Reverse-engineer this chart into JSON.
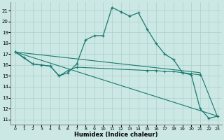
{
  "xlabel": "Humidex (Indice chaleur)",
  "bg_color": "#cce8e5",
  "grid_color": "#aacfcb",
  "line_color": "#1a7a6e",
  "xlim": [
    -0.5,
    23.5
  ],
  "ylim": [
    10.5,
    21.8
  ],
  "xticks": [
    0,
    1,
    2,
    3,
    4,
    5,
    6,
    7,
    8,
    9,
    10,
    11,
    12,
    13,
    14,
    15,
    16,
    17,
    18,
    19,
    20,
    21,
    22,
    23
  ],
  "yticks": [
    11,
    12,
    13,
    14,
    15,
    16,
    17,
    18,
    19,
    20,
    21
  ],
  "curve1_x": [
    0,
    1,
    2,
    3,
    4,
    5,
    6,
    7,
    8,
    9,
    10,
    11,
    12,
    13,
    14,
    15,
    16,
    17,
    18,
    19,
    20,
    21,
    22,
    23
  ],
  "curve1_y": [
    17.2,
    16.7,
    16.1,
    16.0,
    15.9,
    15.0,
    15.3,
    16.1,
    18.3,
    18.7,
    18.7,
    21.3,
    20.9,
    20.5,
    20.8,
    19.3,
    18.0,
    17.0,
    16.5,
    15.3,
    15.1,
    12.0,
    11.1,
    11.3
  ],
  "curve2_x": [
    0,
    2,
    4,
    5,
    6,
    7,
    15,
    16,
    17,
    18,
    19,
    20,
    21
  ],
  "curve2_y": [
    17.2,
    16.1,
    15.9,
    15.0,
    15.5,
    15.8,
    15.5,
    15.5,
    15.4,
    15.4,
    15.3,
    15.2,
    15.1
  ],
  "curve3_x": [
    0,
    23
  ],
  "curve3_y": [
    17.2,
    11.3
  ],
  "curve4_x": [
    0,
    21,
    23
  ],
  "curve4_y": [
    17.2,
    15.3,
    11.2
  ]
}
